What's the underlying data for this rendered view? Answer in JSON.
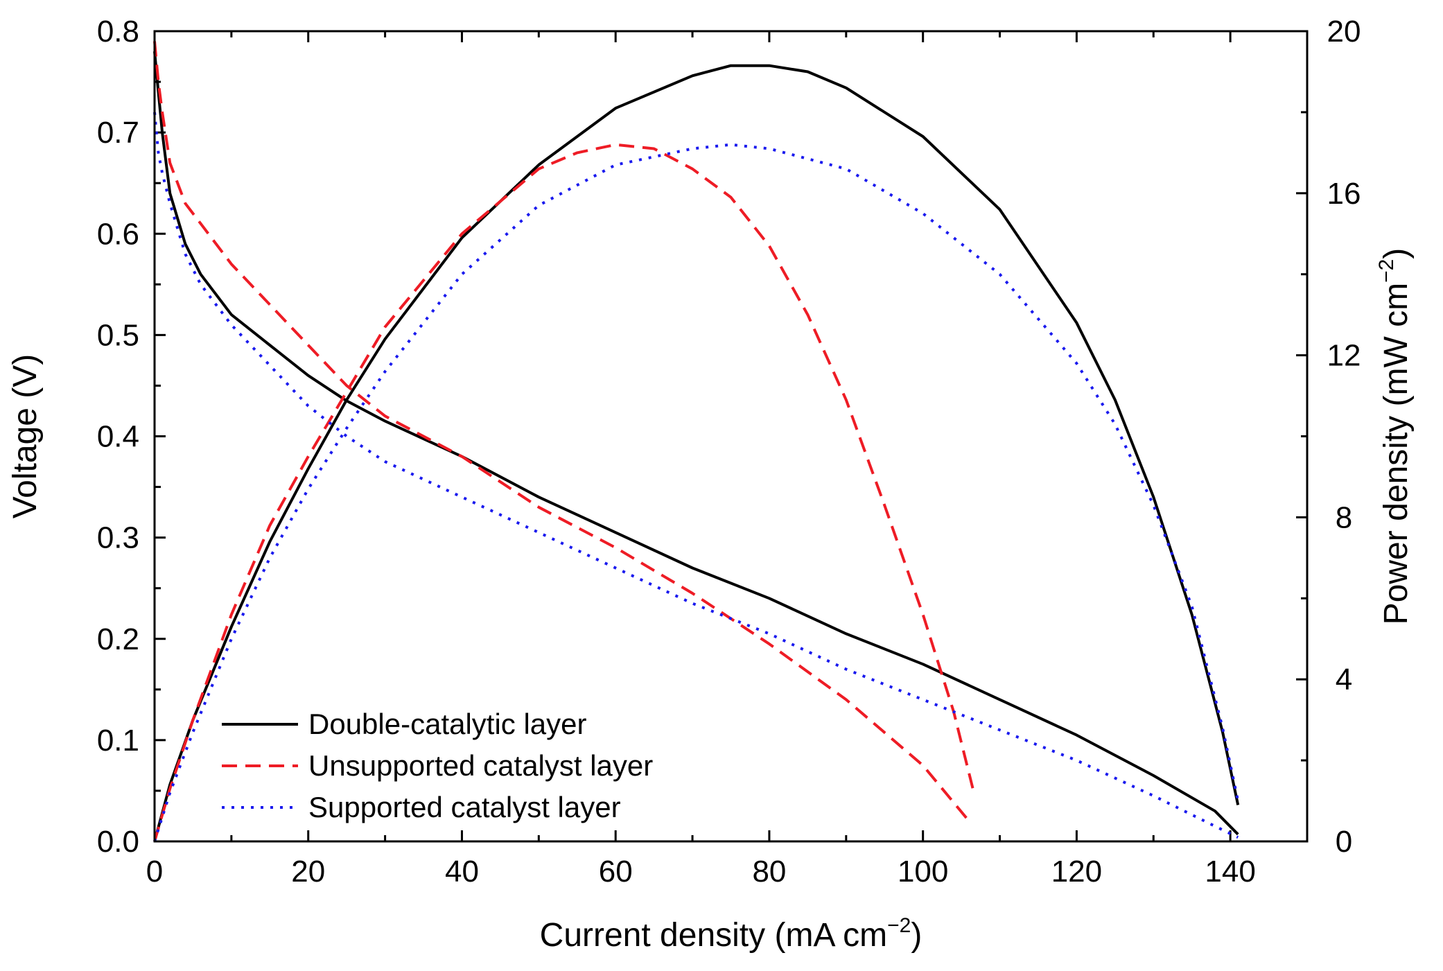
{
  "chart_data": {
    "type": "line",
    "xlabel": "Current density (mA cm",
    "xlabel_sup": "−2",
    "xlabel_end": ")",
    "ylabel": "Voltage (V)",
    "y2label": "Power density (mW cm",
    "y2label_sup": "−2",
    "y2label_end": ")",
    "xlim": [
      0,
      150
    ],
    "ylim": [
      0,
      0.8
    ],
    "y2lim": [
      0,
      20
    ],
    "x_ticks": [
      "0",
      "20",
      "40",
      "60",
      "80",
      "100",
      "120",
      "140"
    ],
    "y_ticks": [
      "0.0",
      "0.1",
      "0.2",
      "0.3",
      "0.4",
      "0.5",
      "0.6",
      "0.7",
      "0.8"
    ],
    "y2_ticks": [
      "0",
      "4",
      "8",
      "12",
      "16",
      "20"
    ],
    "legend_position": "bottom-left",
    "series": [
      {
        "name": "Double-catalytic layer",
        "color": "#000000",
        "style": "solid",
        "voltage": [
          [
            0,
            0.78
          ],
          [
            0.5,
            0.74
          ],
          [
            1,
            0.7
          ],
          [
            2,
            0.64
          ],
          [
            4,
            0.59
          ],
          [
            6,
            0.56
          ],
          [
            10,
            0.52
          ],
          [
            15,
            0.49
          ],
          [
            20,
            0.46
          ],
          [
            25,
            0.435
          ],
          [
            30,
            0.415
          ],
          [
            40,
            0.38
          ],
          [
            50,
            0.34
          ],
          [
            60,
            0.305
          ],
          [
            70,
            0.27
          ],
          [
            80,
            0.24
          ],
          [
            90,
            0.205
          ],
          [
            100,
            0.175
          ],
          [
            110,
            0.14
          ],
          [
            120,
            0.105
          ],
          [
            130,
            0.065
          ],
          [
            138,
            0.03
          ],
          [
            141,
            0.007
          ]
        ],
        "power": [
          [
            0,
            0
          ],
          [
            2,
            1.4
          ],
          [
            5,
            3.0
          ],
          [
            10,
            5.3
          ],
          [
            15,
            7.4
          ],
          [
            20,
            9.2
          ],
          [
            25,
            10.9
          ],
          [
            30,
            12.4
          ],
          [
            40,
            14.9
          ],
          [
            50,
            16.7
          ],
          [
            60,
            18.1
          ],
          [
            70,
            18.9
          ],
          [
            75,
            19.15
          ],
          [
            80,
            19.15
          ],
          [
            85,
            19.0
          ],
          [
            90,
            18.6
          ],
          [
            100,
            17.4
          ],
          [
            110,
            15.6
          ],
          [
            120,
            12.8
          ],
          [
            125,
            10.9
          ],
          [
            130,
            8.5
          ],
          [
            135,
            5.6
          ],
          [
            139,
            2.7
          ],
          [
            141,
            0.9
          ]
        ]
      },
      {
        "name": "Unsupported catalyst layer",
        "color": "#ee1c25",
        "style": "dashed",
        "voltage": [
          [
            0,
            0.79
          ],
          [
            0.5,
            0.75
          ],
          [
            1,
            0.72
          ],
          [
            2,
            0.67
          ],
          [
            4,
            0.63
          ],
          [
            6,
            0.61
          ],
          [
            10,
            0.57
          ],
          [
            15,
            0.53
          ],
          [
            20,
            0.49
          ],
          [
            25,
            0.45
          ],
          [
            30,
            0.42
          ],
          [
            40,
            0.38
          ],
          [
            50,
            0.33
          ],
          [
            60,
            0.29
          ],
          [
            70,
            0.245
          ],
          [
            80,
            0.195
          ],
          [
            90,
            0.14
          ],
          [
            100,
            0.075
          ],
          [
            106,
            0.02
          ]
        ],
        "power": [
          [
            0,
            0
          ],
          [
            2,
            1.3
          ],
          [
            5,
            3.0
          ],
          [
            10,
            5.6
          ],
          [
            15,
            7.8
          ],
          [
            20,
            9.5
          ],
          [
            25,
            11.1
          ],
          [
            30,
            12.7
          ],
          [
            40,
            15.0
          ],
          [
            50,
            16.6
          ],
          [
            55,
            17.0
          ],
          [
            60,
            17.2
          ],
          [
            65,
            17.1
          ],
          [
            70,
            16.6
          ],
          [
            75,
            15.9
          ],
          [
            80,
            14.7
          ],
          [
            85,
            13.0
          ],
          [
            90,
            10.9
          ],
          [
            95,
            8.3
          ],
          [
            100,
            5.6
          ],
          [
            104,
            3.2
          ],
          [
            106.5,
            1.3
          ]
        ]
      },
      {
        "name": "Supported catalyst layer",
        "color": "#1a1aee",
        "style": "dotted",
        "voltage": [
          [
            0,
            0.72
          ],
          [
            0.5,
            0.68
          ],
          [
            1,
            0.66
          ],
          [
            2,
            0.63
          ],
          [
            4,
            0.58
          ],
          [
            6,
            0.55
          ],
          [
            10,
            0.51
          ],
          [
            15,
            0.47
          ],
          [
            20,
            0.43
          ],
          [
            25,
            0.4
          ],
          [
            30,
            0.375
          ],
          [
            40,
            0.34
          ],
          [
            50,
            0.305
          ],
          [
            60,
            0.27
          ],
          [
            70,
            0.235
          ],
          [
            80,
            0.205
          ],
          [
            90,
            0.17
          ],
          [
            100,
            0.14
          ],
          [
            110,
            0.11
          ],
          [
            120,
            0.08
          ],
          [
            130,
            0.045
          ],
          [
            138,
            0.015
          ],
          [
            141,
            0.004
          ]
        ],
        "power": [
          [
            0,
            0
          ],
          [
            2,
            1.2
          ],
          [
            5,
            2.7
          ],
          [
            10,
            5.0
          ],
          [
            15,
            7.0
          ],
          [
            20,
            8.7
          ],
          [
            25,
            10.2
          ],
          [
            30,
            11.6
          ],
          [
            40,
            14.0
          ],
          [
            50,
            15.7
          ],
          [
            60,
            16.7
          ],
          [
            70,
            17.1
          ],
          [
            75,
            17.2
          ],
          [
            80,
            17.1
          ],
          [
            90,
            16.6
          ],
          [
            100,
            15.5
          ],
          [
            110,
            14.0
          ],
          [
            120,
            11.8
          ],
          [
            125,
            10.3
          ],
          [
            130,
            8.3
          ],
          [
            135,
            5.8
          ],
          [
            139,
            2.8
          ],
          [
            141,
            1.0
          ]
        ]
      }
    ]
  }
}
